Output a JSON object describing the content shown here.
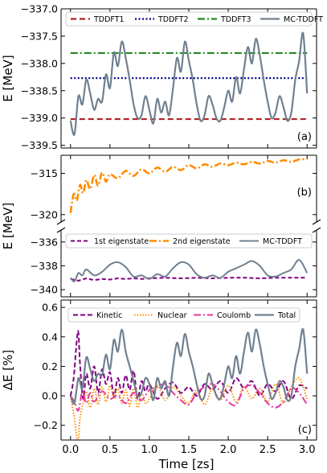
{
  "figure": {
    "xlabel": "Time [zs]",
    "x_ticks": [
      "0.0",
      "0.5",
      "1.0",
      "1.5",
      "2.0",
      "2.5",
      "3.0"
    ],
    "x_tick_values": [
      0,
      0.5,
      1,
      1.5,
      2,
      2.5,
      3
    ],
    "xlim": [
      -0.12,
      3.12
    ]
  },
  "chart_data": [
    {
      "id": "a",
      "type": "line",
      "panel_label": "(a)",
      "ylabel": "E [MeV]",
      "ylim": [
        -339.55,
        -337.0
      ],
      "y_ticks": [
        "−337.0",
        "−337.5",
        "−338.0",
        "−338.5",
        "−339.0",
        "−339.5"
      ],
      "y_tick_values": [
        -337.0,
        -337.5,
        -338.0,
        -338.5,
        -339.0,
        -339.5
      ],
      "legend_position": "top",
      "series": [
        {
          "name": "TDDFT1",
          "color": "#b22222",
          "dash": "7,4",
          "width": 2.2,
          "x": [
            0,
            3
          ],
          "y": [
            -339.02,
            -339.02
          ]
        },
        {
          "name": "TDDFT2",
          "color": "#00008b",
          "dash": "2,2.5",
          "width": 2.2,
          "x": [
            0,
            3
          ],
          "y": [
            -338.27,
            -338.27
          ]
        },
        {
          "name": "TDDFT3",
          "color": "#228b22",
          "dash": "9,3,2,3",
          "width": 2.2,
          "x": [
            0,
            3
          ],
          "y": [
            -337.81,
            -337.81
          ]
        },
        {
          "name": "MC-TDDFT",
          "color": "#708090",
          "dash": "",
          "width": 2.2,
          "x": [
            0,
            0.05,
            0.1,
            0.15,
            0.2,
            0.25,
            0.3,
            0.35,
            0.4,
            0.45,
            0.5,
            0.55,
            0.6,
            0.65,
            0.7,
            0.75,
            0.8,
            0.85,
            0.9,
            0.95,
            1.0,
            1.05,
            1.1,
            1.15,
            1.2,
            1.25,
            1.3,
            1.35,
            1.4,
            1.45,
            1.5,
            1.55,
            1.6,
            1.65,
            1.7,
            1.75,
            1.8,
            1.85,
            1.9,
            1.95,
            2.0,
            2.05,
            2.1,
            2.15,
            2.2,
            2.25,
            2.3,
            2.35,
            2.4,
            2.45,
            2.5,
            2.55,
            2.6,
            2.65,
            2.7,
            2.75,
            2.8,
            2.85,
            2.9,
            2.95,
            3.0
          ],
          "y": [
            -339.05,
            -339.3,
            -338.6,
            -338.75,
            -338.3,
            -338.55,
            -338.85,
            -338.65,
            -338.7,
            -338.2,
            -338.45,
            -337.8,
            -338.05,
            -337.6,
            -337.9,
            -338.3,
            -338.75,
            -339.0,
            -338.95,
            -338.6,
            -338.85,
            -339.1,
            -338.65,
            -338.9,
            -338.7,
            -338.95,
            -338.45,
            -337.9,
            -338.15,
            -337.6,
            -337.95,
            -338.3,
            -338.75,
            -339.05,
            -338.95,
            -338.6,
            -338.75,
            -339.0,
            -339.05,
            -338.8,
            -338.5,
            -338.7,
            -338.25,
            -338.55,
            -338.1,
            -337.7,
            -338.0,
            -337.55,
            -337.85,
            -338.3,
            -338.7,
            -339.0,
            -338.9,
            -338.6,
            -338.8,
            -339.05,
            -338.9,
            -338.3,
            -337.95,
            -337.45,
            -338.55
          ]
        }
      ]
    },
    {
      "id": "b",
      "type": "line",
      "panel_label": "(b)",
      "ylabel": "E [MeV]",
      "broken_axis": true,
      "upper": {
        "ylim": [
          -320.9,
          -312.8
        ],
        "y_ticks": [
          "−315",
          "−320"
        ],
        "y_tick_values": [
          -315,
          -320
        ],
        "series_ref": "2nd eigenstate"
      },
      "lower": {
        "ylim": [
          -340.6,
          -335.0
        ],
        "y_ticks": [
          "−336",
          "−338",
          "−340"
        ],
        "y_tick_values": [
          -336,
          -338,
          -340
        ]
      },
      "legend_position": "bottom-top",
      "series": [
        {
          "name": "1st eigenstate",
          "color": "#800080",
          "dash": "5,3",
          "width": 2.0,
          "x": [
            0,
            0.1,
            0.2,
            0.3,
            0.4,
            0.5,
            0.6,
            0.7,
            0.8,
            0.9,
            1.0,
            1.2,
            1.4,
            1.6,
            1.8,
            2.0,
            2.2,
            2.4,
            2.6,
            2.8,
            3.0
          ],
          "y": [
            -339.1,
            -339.25,
            -339.05,
            -339.2,
            -339.1,
            -339.15,
            -339.05,
            -339.1,
            -339.05,
            -339.1,
            -339.05,
            -339.0,
            -339.05,
            -339.0,
            -339.05,
            -339.0,
            -339.0,
            -339.05,
            -339.0,
            -339.0,
            -339.0
          ]
        },
        {
          "name": "2nd eigenstate",
          "color": "#ff8c00",
          "dash": "9,3,2,3",
          "width": 2.6,
          "x": [
            0,
            0.04,
            0.08,
            0.12,
            0.16,
            0.2,
            0.25,
            0.3,
            0.35,
            0.4,
            0.45,
            0.5,
            0.6,
            0.7,
            0.8,
            0.9,
            1.0,
            1.1,
            1.2,
            1.3,
            1.4,
            1.5,
            1.6,
            1.7,
            1.8,
            1.9,
            2.0,
            2.1,
            2.2,
            2.3,
            2.4,
            2.5,
            2.6,
            2.7,
            2.8,
            2.9,
            3.0
          ],
          "y": [
            -319.8,
            -317.5,
            -318.3,
            -316.4,
            -317.4,
            -315.8,
            -316.9,
            -315.2,
            -316.5,
            -314.9,
            -316.0,
            -315.1,
            -315.6,
            -314.7,
            -315.3,
            -314.5,
            -315.0,
            -314.3,
            -314.8,
            -314.2,
            -314.6,
            -314.0,
            -314.4,
            -313.9,
            -314.2,
            -313.8,
            -314.0,
            -313.7,
            -313.9,
            -313.6,
            -313.8,
            -313.5,
            -313.7,
            -313.4,
            -313.6,
            -313.3,
            -313.3
          ]
        },
        {
          "name": "MC-TDDFT",
          "color": "#708090",
          "dash": "",
          "width": 2.0,
          "x": [
            0,
            0.05,
            0.1,
            0.15,
            0.2,
            0.3,
            0.4,
            0.5,
            0.6,
            0.7,
            0.8,
            0.9,
            1.0,
            1.1,
            1.2,
            1.3,
            1.4,
            1.5,
            1.6,
            1.7,
            1.8,
            1.9,
            2.0,
            2.1,
            2.2,
            2.3,
            2.4,
            2.5,
            2.6,
            2.7,
            2.8,
            2.9,
            3.0
          ],
          "y": [
            -339.0,
            -339.3,
            -338.6,
            -338.8,
            -338.3,
            -338.8,
            -338.5,
            -337.9,
            -337.7,
            -338.1,
            -338.9,
            -338.8,
            -339.1,
            -338.7,
            -338.9,
            -338.2,
            -337.7,
            -337.9,
            -338.7,
            -339.0,
            -338.8,
            -339.0,
            -338.5,
            -338.2,
            -337.9,
            -337.6,
            -338.0,
            -338.8,
            -338.9,
            -338.6,
            -338.3,
            -337.5,
            -338.6
          ]
        }
      ]
    },
    {
      "id": "c",
      "type": "line",
      "panel_label": "(c)",
      "ylabel": "ΔE [%]",
      "ylim": [
        -0.3,
        0.65
      ],
      "y_ticks": [
        "0.6",
        "0.4",
        "0.2",
        "0.0",
        "−0.2"
      ],
      "y_tick_values": [
        0.6,
        0.4,
        0.2,
        0.0,
        -0.2
      ],
      "legend_position": "top",
      "series": [
        {
          "name": "Kinetic",
          "color": "#800080",
          "dash": "6,3",
          "width": 2.0,
          "x": [
            0,
            0.04,
            0.08,
            0.1,
            0.12,
            0.16,
            0.2,
            0.25,
            0.3,
            0.35,
            0.4,
            0.45,
            0.5,
            0.55,
            0.6,
            0.65,
            0.7,
            0.75,
            0.8,
            0.85,
            0.9,
            0.95,
            1.0,
            1.1,
            1.2,
            1.3,
            1.4,
            1.5,
            1.6,
            1.7,
            1.8,
            1.9,
            2.0,
            2.1,
            2.2,
            2.3,
            2.4,
            2.5,
            2.6,
            2.7,
            2.8,
            2.9,
            3.0
          ],
          "y": [
            0.0,
            0.12,
            0.38,
            0.43,
            0.22,
            -0.02,
            0.15,
            0.05,
            0.2,
            0.02,
            0.18,
            0.08,
            0.16,
            0.0,
            0.12,
            0.02,
            0.14,
            0.04,
            0.17,
            -0.02,
            0.1,
            0.03,
            0.08,
            -0.02,
            0.05,
            0.09,
            0.02,
            0.06,
            0.0,
            0.08,
            0.04,
            0.1,
            0.02,
            0.12,
            0.05,
            0.1,
            0.0,
            0.08,
            0.03,
            0.1,
            -0.02,
            0.07,
            0.05
          ]
        },
        {
          "name": "Nuclear",
          "color": "#ff8c00",
          "dash": "1.5,2",
          "width": 2.0,
          "x": [
            0,
            0.04,
            0.08,
            0.1,
            0.12,
            0.16,
            0.2,
            0.25,
            0.3,
            0.35,
            0.4,
            0.45,
            0.5,
            0.55,
            0.6,
            0.65,
            0.7,
            0.75,
            0.8,
            0.85,
            0.9,
            0.95,
            1.0,
            1.1,
            1.2,
            1.3,
            1.4,
            1.5,
            1.6,
            1.7,
            1.8,
            1.9,
            2.0,
            2.1,
            2.2,
            2.3,
            2.4,
            2.5,
            2.6,
            2.7,
            2.8,
            2.9,
            3.0
          ],
          "y": [
            0.0,
            -0.12,
            -0.28,
            -0.3,
            -0.15,
            -0.05,
            0.03,
            -0.08,
            0.05,
            -0.06,
            0.06,
            -0.04,
            0.07,
            -0.02,
            0.05,
            -0.05,
            0.04,
            -0.07,
            0.05,
            -0.08,
            0.02,
            -0.05,
            -0.02,
            0.07,
            -0.03,
            0.06,
            0.0,
            -0.05,
            0.04,
            -0.06,
            0.05,
            -0.03,
            0.07,
            -0.04,
            0.06,
            -0.02,
            0.05,
            -0.04,
            0.08,
            -0.05,
            0.06,
            0.12,
            -0.02
          ]
        },
        {
          "name": "Coulomb",
          "color": "#e6399b",
          "dash": "9,3,2,3",
          "width": 2.0,
          "x": [
            0,
            0.05,
            0.1,
            0.15,
            0.2,
            0.25,
            0.3,
            0.4,
            0.5,
            0.6,
            0.7,
            0.8,
            0.9,
            1.0,
            1.1,
            1.2,
            1.3,
            1.4,
            1.5,
            1.6,
            1.7,
            1.8,
            1.9,
            2.0,
            2.1,
            2.2,
            2.3,
            2.4,
            2.5,
            2.6,
            2.7,
            2.8,
            2.9,
            3.0
          ],
          "y": [
            0.0,
            -0.04,
            -0.1,
            0.03,
            -0.05,
            0.02,
            -0.04,
            0.03,
            -0.02,
            0.0,
            -0.05,
            0.02,
            -0.03,
            0.04,
            0.06,
            0.08,
            0.02,
            -0.03,
            -0.06,
            0.02,
            0.06,
            0.08,
            0.03,
            -0.04,
            -0.06,
            0.05,
            0.07,
            0.02,
            -0.05,
            -0.08,
            -0.04,
            0.05,
            0.02,
            -0.06
          ]
        },
        {
          "name": "Total",
          "color": "#708090",
          "dash": "",
          "width": 2.2,
          "x": [
            0,
            0.05,
            0.1,
            0.15,
            0.2,
            0.25,
            0.3,
            0.35,
            0.4,
            0.45,
            0.5,
            0.55,
            0.6,
            0.65,
            0.7,
            0.75,
            0.8,
            0.85,
            0.9,
            0.95,
            1.0,
            1.05,
            1.1,
            1.15,
            1.2,
            1.25,
            1.3,
            1.35,
            1.4,
            1.45,
            1.5,
            1.55,
            1.6,
            1.65,
            1.7,
            1.75,
            1.8,
            1.85,
            1.9,
            1.95,
            2.0,
            2.05,
            2.1,
            2.15,
            2.2,
            2.25,
            2.3,
            2.35,
            2.4,
            2.45,
            2.5,
            2.55,
            2.6,
            2.65,
            2.7,
            2.75,
            2.8,
            2.85,
            2.9,
            2.95,
            3.0
          ],
          "y": [
            0.0,
            -0.05,
            0.12,
            0.05,
            0.26,
            0.18,
            0.1,
            0.15,
            0.14,
            0.28,
            0.18,
            0.38,
            0.3,
            0.45,
            0.3,
            0.2,
            0.1,
            0.0,
            0.02,
            0.12,
            0.08,
            -0.03,
            0.12,
            0.05,
            0.1,
            0.0,
            0.2,
            0.36,
            0.27,
            0.42,
            0.3,
            0.2,
            0.08,
            -0.02,
            0.0,
            0.15,
            0.08,
            0.0,
            -0.02,
            0.08,
            0.2,
            0.12,
            0.27,
            0.15,
            0.3,
            0.43,
            0.3,
            0.45,
            0.35,
            0.2,
            0.08,
            -0.02,
            0.02,
            0.1,
            0.06,
            -0.03,
            0.0,
            0.2,
            0.32,
            0.45,
            0.15
          ]
        }
      ]
    }
  ]
}
